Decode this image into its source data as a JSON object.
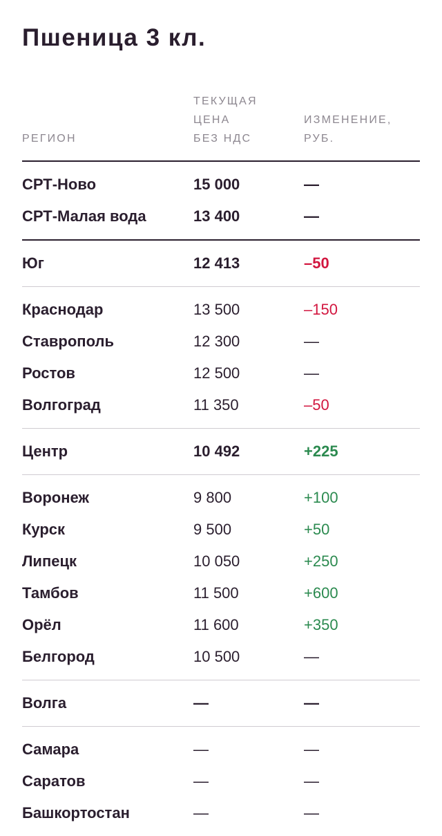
{
  "title": "Пшеница 3 кл.",
  "headers": {
    "region": "РЕГИОН",
    "price": "ТЕКУЩАЯ\nЦЕНА\nБЕЗ НДС",
    "change": "ИЗМЕНЕНИЕ,\nРУБ."
  },
  "colors": {
    "text": "#2a1e2e",
    "muted": "#8d8790",
    "negative": "#d2163f",
    "positive": "#2b8a4f"
  },
  "groups": [
    {
      "rows": [
        {
          "region": "СРТ-Ново",
          "price": "15 000",
          "change": "—"
        },
        {
          "region": "СРТ-Малая вода",
          "price": "13 400",
          "change": "—"
        }
      ]
    },
    {
      "rows": [
        {
          "region": "Юг",
          "price": "12 413",
          "change": "–50"
        }
      ]
    },
    {
      "rows": [
        {
          "region": "Краснодар",
          "price": "13 500",
          "change": "–150"
        },
        {
          "region": "Ставрополь",
          "price": "12 300",
          "change": "—"
        },
        {
          "region": "Ростов",
          "price": "12 500",
          "change": "—"
        },
        {
          "region": "Волгоград",
          "price": "11 350",
          "change": "–50"
        }
      ]
    },
    {
      "rows": [
        {
          "region": "Центр",
          "price": "10 492",
          "change": "+225"
        }
      ]
    },
    {
      "rows": [
        {
          "region": "Воронеж",
          "price": "9 800",
          "change": "+100"
        },
        {
          "region": "Курск",
          "price": "9 500",
          "change": "+50"
        },
        {
          "region": "Липецк",
          "price": "10 050",
          "change": "+250"
        },
        {
          "region": "Тамбов",
          "price": "11 500",
          "change": "+600"
        },
        {
          "region": "Орёл",
          "price": "11 600",
          "change": "+350"
        },
        {
          "region": "Белгород",
          "price": "10 500",
          "change": "—"
        }
      ]
    },
    {
      "rows": [
        {
          "region": "Волга",
          "price": "—",
          "change": "—"
        }
      ]
    },
    {
      "rows": [
        {
          "region": "Самара",
          "price": "—",
          "change": "—"
        },
        {
          "region": "Саратов",
          "price": "—",
          "change": "—"
        },
        {
          "region": "Башкортостан",
          "price": "—",
          "change": "—"
        }
      ]
    }
  ]
}
